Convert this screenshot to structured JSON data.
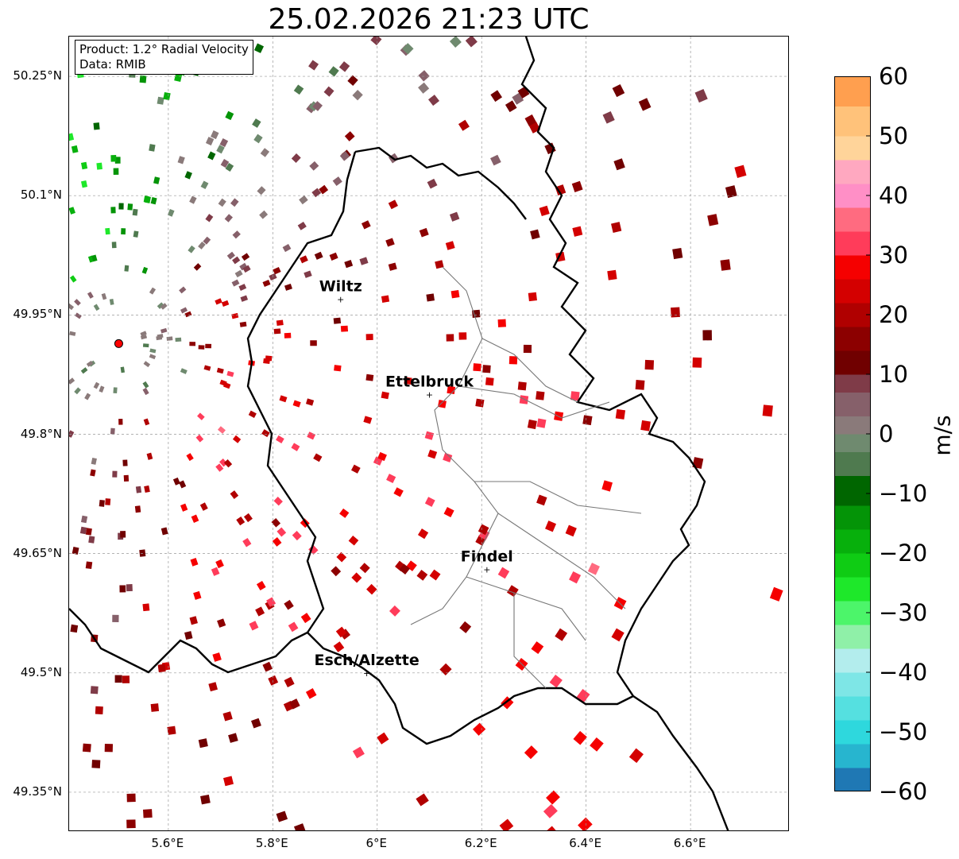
{
  "title": "25.02.2026 21:23 UTC",
  "info_box": {
    "product": "Product: 1.2° Radial Velocity",
    "data": "Data: RMIB"
  },
  "axes": {
    "lat_ticks": [
      "50.25°N",
      "50.1°N",
      "49.95°N",
      "49.8°N",
      "49.65°N",
      "49.5°N",
      "49.35°N"
    ],
    "lon_ticks": [
      "5.6°E",
      "5.8°E",
      "6°E",
      "6.2°E",
      "6.4°E",
      "6.6°E"
    ],
    "lat_range": [
      49.3,
      50.3
    ],
    "lon_range": [
      5.41,
      6.79
    ],
    "grid": true
  },
  "places": [
    {
      "name": "Wiltz",
      "lat": 49.97,
      "lon": 5.93
    },
    {
      "name": "Ettelbruck",
      "lat": 49.85,
      "lon": 6.1
    },
    {
      "name": "Findel",
      "lat": 49.63,
      "lon": 6.21
    },
    {
      "name": "Esch/Alzette",
      "lat": 49.5,
      "lon": 5.98
    }
  ],
  "radar_site": {
    "lat": 49.914,
    "lon": 5.505,
    "color": "#ff0000"
  },
  "colorbar": {
    "unit": "m/s",
    "range": [
      -60,
      60
    ],
    "ticks": [
      "60",
      "50",
      "40",
      "30",
      "20",
      "10",
      "0",
      "−10",
      "−20",
      "−30",
      "−40",
      "−50",
      "−60"
    ],
    "colors": [
      {
        "from": -60,
        "to": -56,
        "color": "#1f78b4"
      },
      {
        "from": -56,
        "to": -52,
        "color": "#27b5cf"
      },
      {
        "from": -52,
        "to": -48,
        "color": "#2ed8dd"
      },
      {
        "from": -48,
        "to": -44,
        "color": "#55e0e0"
      },
      {
        "from": -44,
        "to": -40,
        "color": "#7ee6e6"
      },
      {
        "from": -40,
        "to": -36,
        "color": "#b3eded"
      },
      {
        "from": -36,
        "to": -32,
        "color": "#8ff0a8"
      },
      {
        "from": -32,
        "to": -28,
        "color": "#4cf56a"
      },
      {
        "from": -28,
        "to": -24,
        "color": "#1ee82a"
      },
      {
        "from": -24,
        "to": -20,
        "color": "#0fcc14"
      },
      {
        "from": -20,
        "to": -16,
        "color": "#07b00c"
      },
      {
        "from": -16,
        "to": -12,
        "color": "#049407"
      },
      {
        "from": -12,
        "to": -7,
        "color": "#006600"
      },
      {
        "from": -7,
        "to": -3,
        "color": "#4f7a4f"
      },
      {
        "from": -3,
        "to": 0,
        "color": "#6f8a6f"
      },
      {
        "from": 0,
        "to": 3,
        "color": "#8a7a7a"
      },
      {
        "from": 3,
        "to": 7,
        "color": "#86606a"
      },
      {
        "from": 7,
        "to": 10,
        "color": "#7f3b48"
      },
      {
        "from": 10,
        "to": 14,
        "color": "#700000"
      },
      {
        "from": 14,
        "to": 18,
        "color": "#8c0000"
      },
      {
        "from": 18,
        "to": 22,
        "color": "#b00000"
      },
      {
        "from": 22,
        "to": 26,
        "color": "#d40000"
      },
      {
        "from": 26,
        "to": 30,
        "color": "#f50000"
      },
      {
        "from": 30,
        "to": 34,
        "color": "#ff3c5a"
      },
      {
        "from": 34,
        "to": 38,
        "color": "#ff6b80"
      },
      {
        "from": 38,
        "to": 42,
        "color": "#ff8fc6"
      },
      {
        "from": 42,
        "to": 46,
        "color": "#ffa8c0"
      },
      {
        "from": 46,
        "to": 50,
        "color": "#ffd49a"
      },
      {
        "from": 50,
        "to": 55,
        "color": "#ffc27a"
      },
      {
        "from": 55,
        "to": 60,
        "color": "#ff9f4f"
      }
    ]
  }
}
